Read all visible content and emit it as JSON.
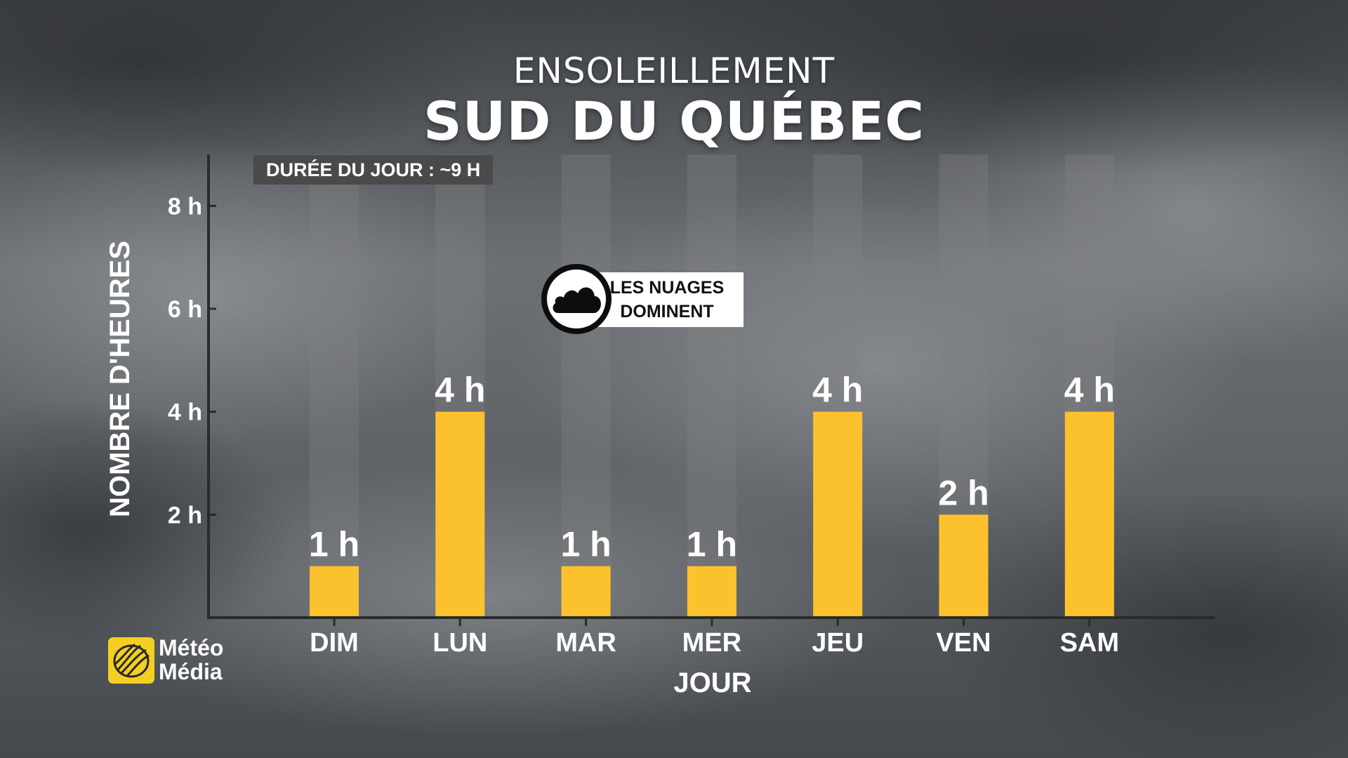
{
  "header": {
    "subtitle": "ENSOLEILLEMENT",
    "title": "SUD DU QUÉBEC"
  },
  "day_length_label": "DURÉE DU JOUR : ~9 H",
  "callout": {
    "line1": "LES NUAGES",
    "line2": "DOMINENT",
    "icon": "cloud-icon"
  },
  "brand": {
    "line1": "Météo",
    "line2": "Média",
    "icon": "meteomedia-logo-icon",
    "color": "#f4cf21"
  },
  "chart_data": {
    "type": "bar",
    "categories": [
      "DIM",
      "LUN",
      "MAR",
      "MER",
      "JEU",
      "VEN",
      "SAM"
    ],
    "values": [
      1,
      4,
      1,
      1,
      4,
      2,
      4
    ],
    "value_labels": [
      "1 h",
      "4 h",
      "1 h",
      "1 h",
      "4 h",
      "2 h",
      "4 h"
    ],
    "day_length_hours": 9,
    "xlabel": "JOUR",
    "ylabel": "NOMBRE D'HEURES",
    "yticks": [
      2,
      4,
      6,
      8
    ],
    "ytick_labels": [
      "2 h",
      "4 h",
      "6 h",
      "8 h"
    ],
    "ylim": [
      0,
      9
    ],
    "grid": false,
    "bar_color": "#fcc22e",
    "track_color": "#808080"
  }
}
